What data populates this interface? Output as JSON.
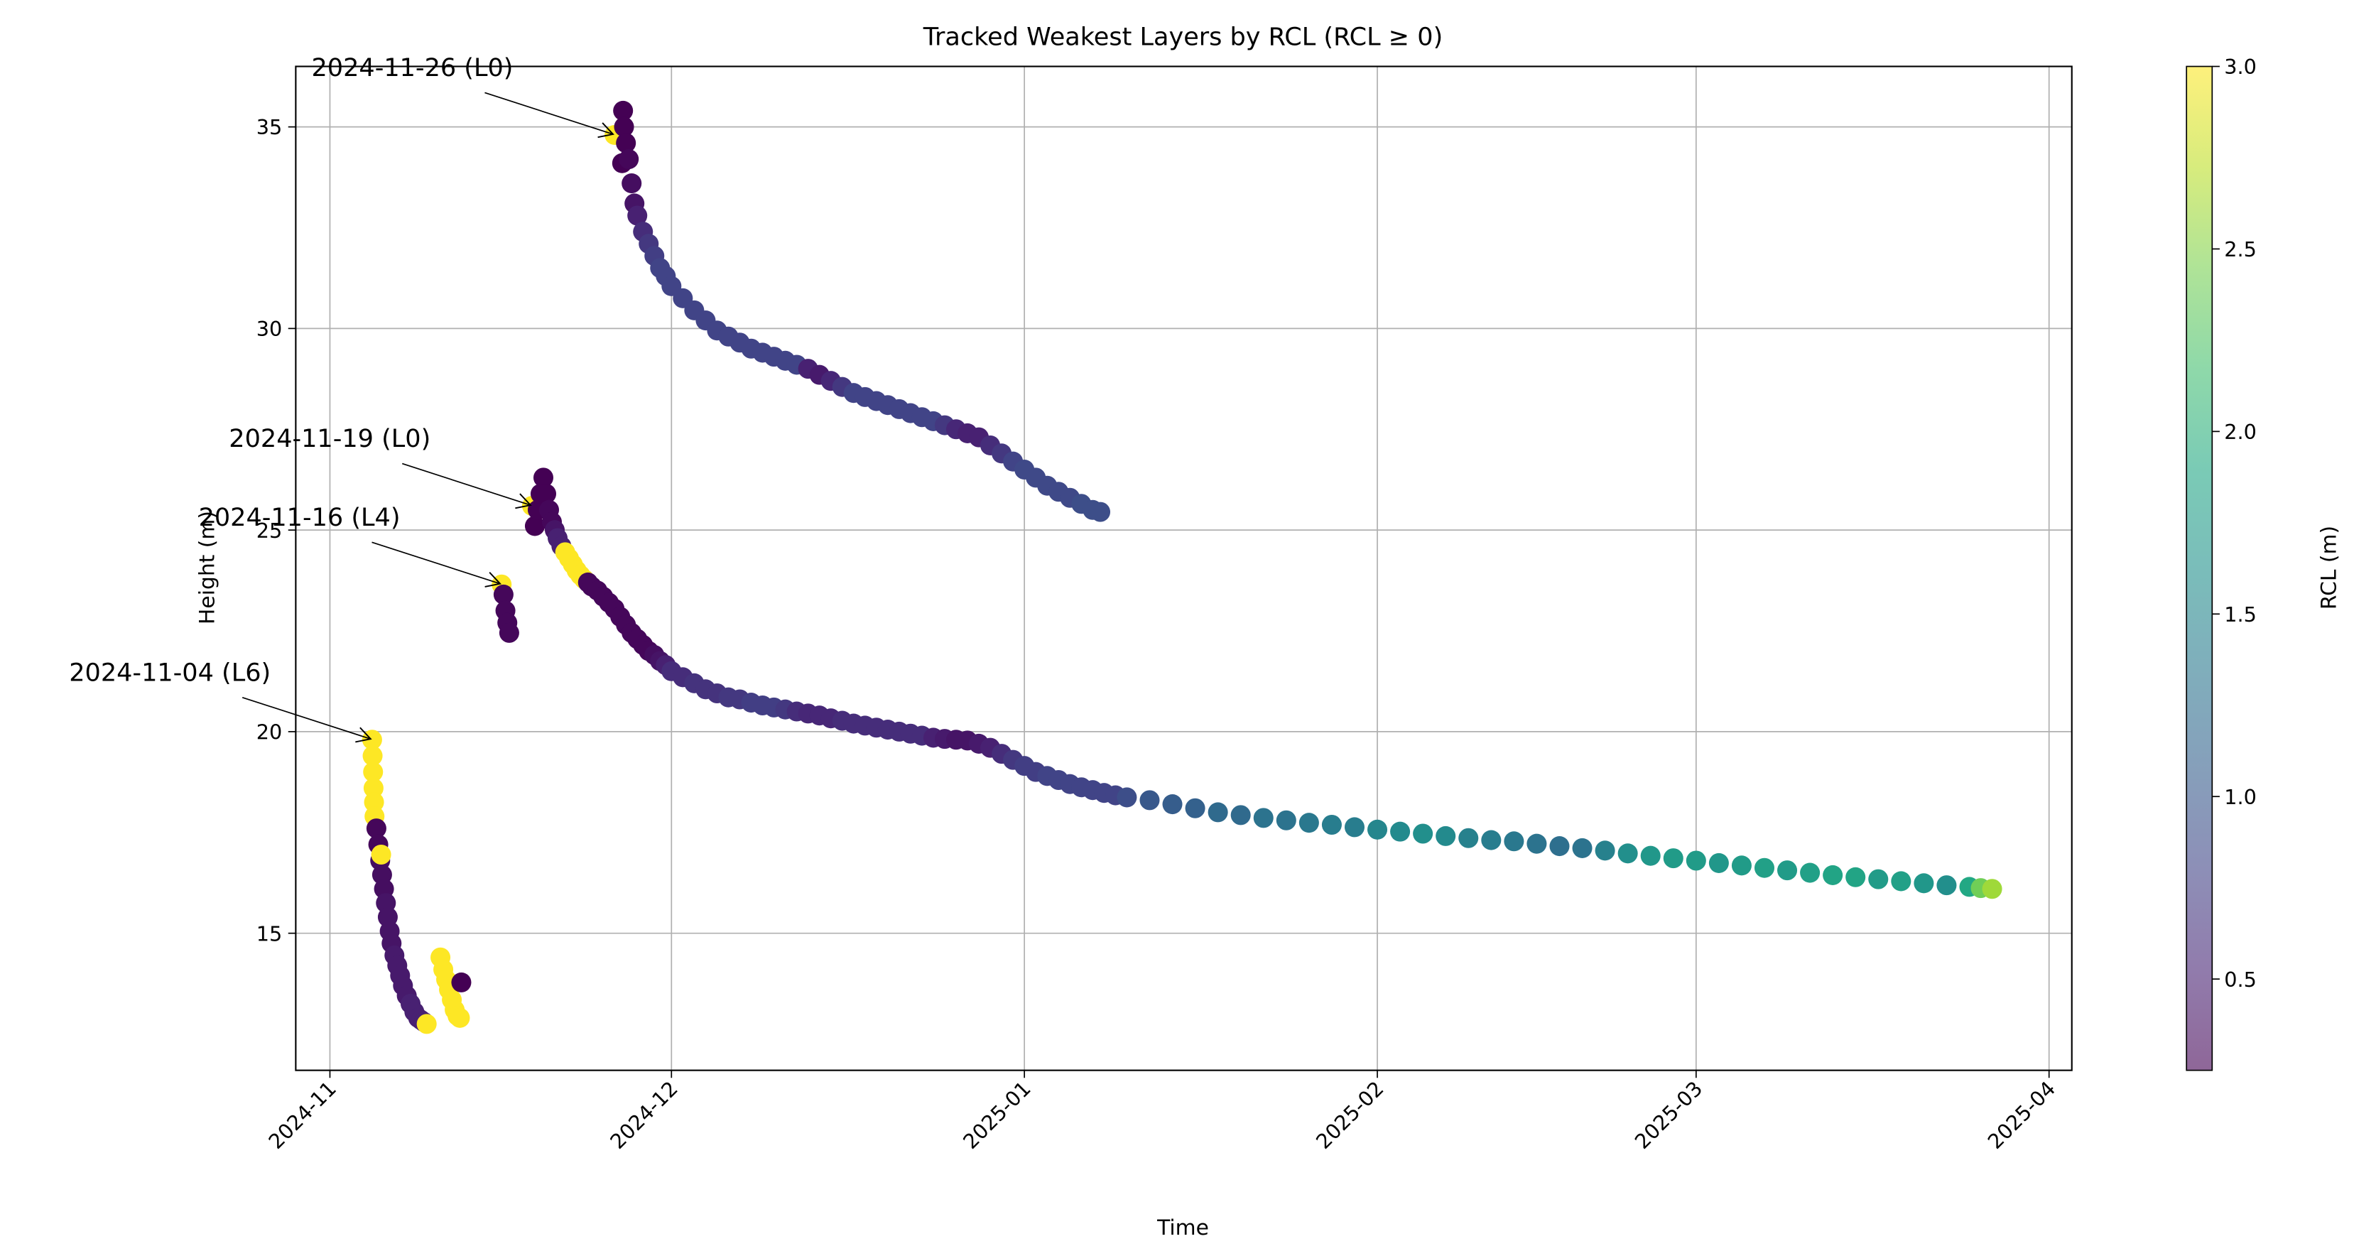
{
  "chart_data": {
    "type": "scatter",
    "title": "Tracked Weakest Layers by RCL (RCL ≥ 0)",
    "x_label": "Time",
    "y_label": "Height (m)",
    "xlim": [
      "2024-10-29",
      "2025-04-03"
    ],
    "ylim": [
      11.6,
      36.5
    ],
    "xticks": [
      {
        "value": "2024-11-01",
        "label": "2024-11"
      },
      {
        "value": "2024-12-01",
        "label": "2024-12"
      },
      {
        "value": "2025-01-01",
        "label": "2025-01"
      },
      {
        "value": "2025-02-01",
        "label": "2025-02"
      },
      {
        "value": "2025-03-01",
        "label": "2025-03"
      },
      {
        "value": "2025-04-01",
        "label": "2025-04"
      }
    ],
    "yticks": [
      15,
      20,
      25,
      30,
      35
    ],
    "grid": true,
    "colormap": "viridis",
    "colorbar": {
      "label": "RCL (m)",
      "clim": [
        0.25,
        3.0
      ],
      "ticks": [
        0.5,
        {
          "value": 1,
          "label": "1.0"
        },
        1.5,
        {
          "value": 2,
          "label": "2.0"
        },
        2.5,
        {
          "value": 3,
          "label": "3.0"
        }
      ]
    },
    "series": [
      {
        "annotation": "2024-11-26 (L0)",
        "x": [
          "2024-11-26 00:00",
          "2024-11-26 16:00",
          "2024-11-26 18:00",
          "2024-11-26 20:00",
          "2024-11-27 00:00",
          "2024-11-27 06:00",
          "2024-11-27 12:00",
          "2024-11-27 18:00",
          "2024-11-28 00:00",
          "2024-11-28 12:00",
          "2024-11-29 00:00",
          "2024-11-29 12:00",
          "2024-11-30 00:00",
          "2024-11-30 12:00",
          "2024-12-01",
          "2024-12-02",
          "2024-12-03",
          "2024-12-04",
          "2024-12-05",
          "2024-12-06",
          "2024-12-07",
          "2024-12-08",
          "2024-12-09",
          "2024-12-10",
          "2024-12-11",
          "2024-12-12",
          "2024-12-13",
          "2024-12-14",
          "2024-12-15",
          "2024-12-16",
          "2024-12-17",
          "2024-12-18",
          "2024-12-19",
          "2024-12-20",
          "2024-12-21",
          "2024-12-22",
          "2024-12-23",
          "2024-12-24",
          "2024-12-25",
          "2024-12-26",
          "2024-12-27",
          "2024-12-28",
          "2024-12-29",
          "2024-12-30",
          "2024-12-31",
          "2025-01-01",
          "2025-01-02",
          "2025-01-03",
          "2025-01-04",
          "2025-01-05",
          "2025-01-06",
          "2025-01-07",
          "2025-01-07 16:00"
        ],
        "y": [
          34.8,
          34.1,
          35.4,
          35.0,
          34.6,
          34.2,
          33.6,
          33.1,
          32.8,
          32.4,
          32.1,
          31.8,
          31.5,
          31.3,
          31.05,
          30.75,
          30.45,
          30.2,
          29.95,
          29.8,
          29.65,
          29.5,
          29.4,
          29.3,
          29.2,
          29.1,
          29.0,
          28.85,
          28.7,
          28.55,
          28.4,
          28.3,
          28.2,
          28.1,
          28.0,
          27.9,
          27.8,
          27.7,
          27.6,
          27.5,
          27.4,
          27.3,
          27.1,
          26.9,
          26.7,
          26.5,
          26.3,
          26.1,
          25.95,
          25.8,
          25.65,
          25.5,
          25.45
        ],
        "c": [
          3.0,
          0.25,
          0.25,
          0.25,
          0.25,
          0.3,
          0.35,
          0.4,
          0.5,
          0.6,
          0.7,
          0.75,
          0.8,
          0.8,
          0.8,
          0.8,
          0.8,
          0.8,
          0.8,
          0.8,
          0.8,
          0.8,
          0.8,
          0.8,
          0.8,
          0.8,
          0.5,
          0.45,
          0.55,
          0.7,
          0.8,
          0.8,
          0.8,
          0.8,
          0.8,
          0.8,
          0.8,
          0.8,
          0.7,
          0.55,
          0.5,
          0.5,
          0.6,
          0.7,
          0.8,
          0.85,
          0.85,
          0.85,
          0.85,
          0.85,
          0.9,
          0.9,
          0.9
        ]
      },
      {
        "annotation": "2024-11-19 (L0)",
        "x": [
          "2024-11-18 18:00",
          "2024-11-19 00:00",
          "2024-11-19 06:00",
          "2024-11-19 12:00",
          "2024-11-19 18:00",
          "2024-11-20 00:00",
          "2024-11-20 06:00",
          "2024-11-20 12:00",
          "2024-11-20 18:00",
          "2024-11-21 00:00",
          "2024-11-21 08:00",
          "2024-11-21 16:00",
          "2024-11-22 00:00",
          "2024-11-22 08:00",
          "2024-11-22 16:00",
          "2024-11-23 00:00",
          "2024-11-23 08:00",
          "2024-11-23 16:00",
          "2024-11-24 00:00",
          "2024-11-24 12:00",
          "2024-11-25 00:00",
          "2024-11-25 12:00",
          "2024-11-26 00:00",
          "2024-11-26 12:00",
          "2024-11-27 00:00",
          "2024-11-27 12:00",
          "2024-11-28 00:00",
          "2024-11-28 12:00",
          "2024-11-29 00:00",
          "2024-11-29 12:00",
          "2024-11-30 00:00",
          "2024-11-30 12:00",
          "2024-12-01",
          "2024-12-02",
          "2024-12-03",
          "2024-12-04",
          "2024-12-05",
          "2024-12-06",
          "2024-12-07",
          "2024-12-08",
          "2024-12-09",
          "2024-12-10",
          "2024-12-11",
          "2024-12-12",
          "2024-12-13",
          "2024-12-14",
          "2024-12-15",
          "2024-12-16",
          "2024-12-17",
          "2024-12-18",
          "2024-12-19",
          "2024-12-20",
          "2024-12-21",
          "2024-12-22",
          "2024-12-23",
          "2024-12-24",
          "2024-12-25",
          "2024-12-26",
          "2024-12-27",
          "2024-12-28",
          "2024-12-29",
          "2024-12-30",
          "2024-12-31",
          "2025-01-01",
          "2025-01-02",
          "2025-01-03",
          "2025-01-04",
          "2025-01-05",
          "2025-01-06",
          "2025-01-07",
          "2025-01-08",
          "2025-01-09",
          "2025-01-10",
          "2025-01-12",
          "2025-01-14",
          "2025-01-16",
          "2025-01-18",
          "2025-01-20",
          "2025-01-22",
          "2025-01-24",
          "2025-01-26",
          "2025-01-28",
          "2025-01-30",
          "2025-02-01",
          "2025-02-03",
          "2025-02-05",
          "2025-02-07",
          "2025-02-09",
          "2025-02-11",
          "2025-02-13",
          "2025-02-15",
          "2025-02-17",
          "2025-02-19",
          "2025-02-21",
          "2025-02-23",
          "2025-02-25",
          "2025-02-27",
          "2025-03-01",
          "2025-03-03",
          "2025-03-05",
          "2025-03-07",
          "2025-03-09",
          "2025-03-11",
          "2025-03-13",
          "2025-03-15",
          "2025-03-17",
          "2025-03-19",
          "2025-03-21",
          "2025-03-23",
          "2025-03-25",
          "2025-03-26",
          "2025-03-27"
        ],
        "y": [
          25.6,
          25.1,
          25.5,
          25.9,
          26.3,
          25.9,
          25.5,
          25.2,
          25.0,
          24.8,
          24.6,
          24.45,
          24.3,
          24.15,
          24.0,
          23.88,
          23.78,
          23.7,
          23.6,
          23.5,
          23.35,
          23.2,
          23.05,
          22.85,
          22.65,
          22.45,
          22.3,
          22.15,
          22.0,
          21.9,
          21.75,
          21.65,
          21.5,
          21.35,
          21.2,
          21.05,
          20.95,
          20.85,
          20.8,
          20.72,
          20.65,
          20.6,
          20.55,
          20.5,
          20.45,
          20.4,
          20.33,
          20.27,
          20.2,
          20.15,
          20.1,
          20.05,
          20.0,
          19.95,
          19.9,
          19.85,
          19.82,
          19.8,
          19.78,
          19.7,
          19.6,
          19.45,
          19.3,
          19.15,
          19.0,
          18.9,
          18.8,
          18.7,
          18.62,
          18.55,
          18.48,
          18.42,
          18.37,
          18.3,
          18.2,
          18.1,
          18.0,
          17.93,
          17.86,
          17.8,
          17.74,
          17.69,
          17.63,
          17.57,
          17.52,
          17.47,
          17.41,
          17.36,
          17.31,
          17.28,
          17.22,
          17.16,
          17.11,
          17.05,
          16.98,
          16.92,
          16.86,
          16.8,
          16.74,
          16.68,
          16.62,
          16.56,
          16.5,
          16.44,
          16.39,
          16.34,
          16.29,
          16.24,
          16.19,
          16.15,
          16.12,
          16.1
        ],
        "c": [
          3.0,
          0.25,
          0.25,
          0.25,
          0.25,
          0.25,
          0.3,
          0.3,
          0.4,
          0.5,
          0.5,
          3.0,
          3.0,
          3.0,
          3.0,
          3.0,
          3.0,
          0.3,
          0.3,
          0.3,
          0.3,
          0.3,
          0.3,
          0.3,
          0.3,
          0.3,
          0.3,
          0.3,
          0.3,
          0.35,
          0.4,
          0.5,
          0.6,
          0.6,
          0.65,
          0.65,
          0.65,
          0.7,
          0.7,
          0.75,
          0.75,
          0.75,
          0.7,
          0.6,
          0.55,
          0.55,
          0.55,
          0.6,
          0.6,
          0.6,
          0.6,
          0.6,
          0.6,
          0.6,
          0.6,
          0.5,
          0.45,
          0.4,
          0.4,
          0.45,
          0.5,
          0.6,
          0.7,
          0.75,
          0.75,
          0.8,
          0.8,
          0.8,
          0.8,
          0.8,
          0.8,
          0.8,
          0.9,
          1.0,
          1.05,
          1.1,
          1.2,
          1.2,
          1.3,
          1.3,
          1.35,
          1.4,
          1.4,
          1.5,
          1.55,
          1.6,
          1.55,
          1.45,
          1.4,
          1.35,
          1.3,
          1.25,
          1.3,
          1.45,
          1.6,
          1.7,
          1.75,
          1.75,
          1.7,
          1.75,
          1.8,
          1.75,
          1.8,
          1.85,
          1.85,
          1.75,
          1.8,
          1.7,
          1.6,
          1.9,
          2.4,
          2.6
        ]
      },
      {
        "annotation": "2024-11-16 (L4)",
        "x": [
          "2024-11-16 02:00",
          "2024-11-16 06:00",
          "2024-11-16 10:00",
          "2024-11-16 14:00",
          "2024-11-16 18:00"
        ],
        "y": [
          23.65,
          23.4,
          23.0,
          22.7,
          22.45
        ],
        "c": [
          3.0,
          0.3,
          0.3,
          0.3,
          0.3
        ]
      },
      {
        "annotation": "2024-11-04 (L6)",
        "x": [
          "2024-11-04 17:00",
          "2024-11-04 18:00",
          "2024-11-04 19:00",
          "2024-11-04 20:00",
          "2024-11-04 21:00",
          "2024-11-04 22:00",
          "2024-11-05 02:00",
          "2024-11-05 06:00",
          "2024-11-05 10:00",
          "2024-11-05 12:00",
          "2024-11-05 14:00",
          "2024-11-05 18:00",
          "2024-11-05 22:00",
          "2024-11-06 02:00",
          "2024-11-06 06:00",
          "2024-11-06 10:00",
          "2024-11-06 16:00",
          "2024-11-06 22:00",
          "2024-11-07 04:00",
          "2024-11-07 10:00",
          "2024-11-07 18:00",
          "2024-11-08 02:00",
          "2024-11-08 10:00",
          "2024-11-08 18:00",
          "2024-11-09 00:00",
          "2024-11-09 06:00",
          "2024-11-09 12:00",
          "2024-11-10 17:00",
          "2024-11-10 23:00",
          "2024-11-11 05:00",
          "2024-11-11 11:00",
          "2024-11-11 17:00",
          "2024-11-11 23:00",
          "2024-11-12 05:00",
          "2024-11-12 10:00",
          "2024-11-12 13:00"
        ],
        "y": [
          19.8,
          19.4,
          19.0,
          18.6,
          18.25,
          17.9,
          17.6,
          17.2,
          16.8,
          16.95,
          16.45,
          16.1,
          15.75,
          15.4,
          15.05,
          14.75,
          14.45,
          14.2,
          13.95,
          13.7,
          13.45,
          13.25,
          13.05,
          12.9,
          12.85,
          12.8,
          12.75,
          14.4,
          14.1,
          13.85,
          13.6,
          13.35,
          13.1,
          12.95,
          12.9,
          13.78
        ],
        "c": [
          3.0,
          3.0,
          3.0,
          3.0,
          3.0,
          3.0,
          0.3,
          0.3,
          0.35,
          3.0,
          0.35,
          0.35,
          0.4,
          0.4,
          0.4,
          0.4,
          0.45,
          0.45,
          0.45,
          0.45,
          0.45,
          0.5,
          0.5,
          0.5,
          0.5,
          0.5,
          3.0,
          3.0,
          3.0,
          3.0,
          3.0,
          3.0,
          3.0,
          3.0,
          3.0,
          0.25
        ]
      }
    ]
  }
}
